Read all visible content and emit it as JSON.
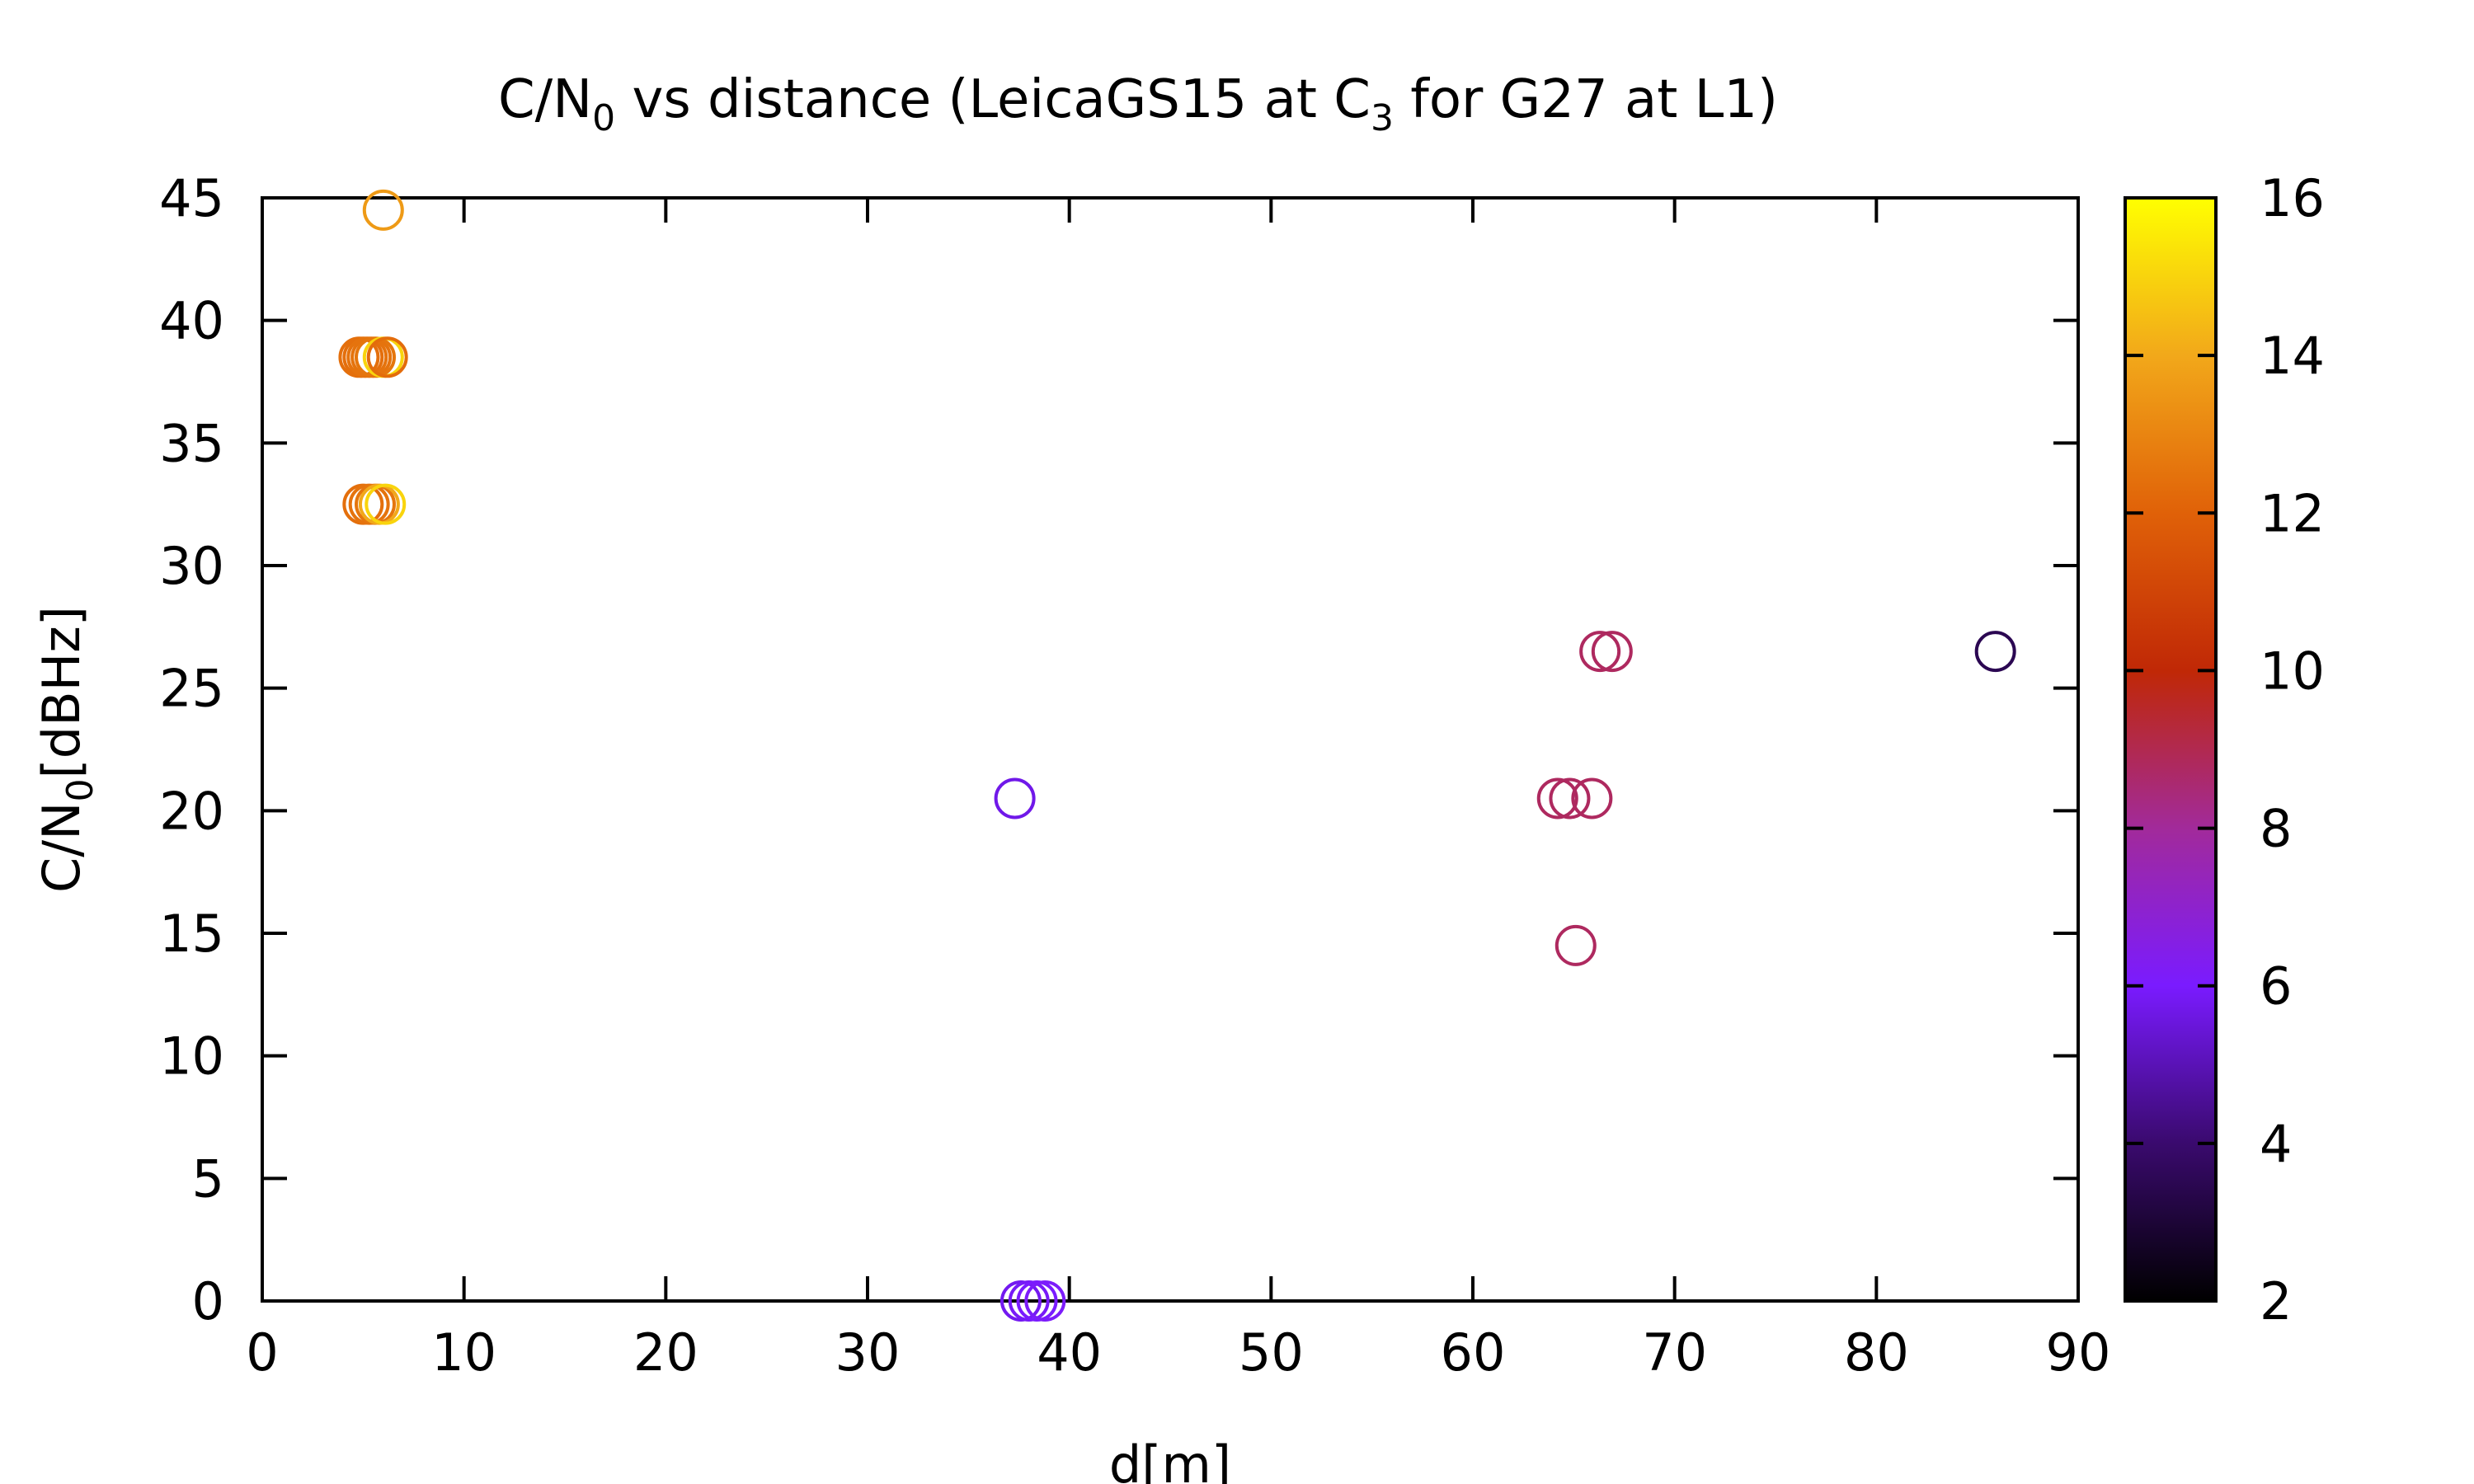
{
  "chart_data": {
    "type": "scatter",
    "title": {
      "base": "C/N",
      "sub": "0",
      "rest1": " vs distance (LeicaGS15 at C",
      "sub2": "3",
      "rest2": " for G27 at L1)"
    },
    "xlabel": "d[m]",
    "ylabel": {
      "base": "C/N",
      "sub": "0",
      "rest": "[dBHz]"
    },
    "xlim": [
      0,
      90
    ],
    "ylim": [
      0,
      45
    ],
    "xticks": [
      0,
      10,
      20,
      30,
      40,
      50,
      60,
      70,
      80,
      90
    ],
    "yticks": [
      0,
      5,
      10,
      15,
      20,
      25,
      30,
      35,
      40,
      45
    ],
    "colorbar": {
      "range": [
        2,
        16
      ],
      "ticks": [
        2,
        4,
        6,
        8,
        10,
        12,
        14,
        16
      ]
    },
    "marker": "open-circle",
    "points": [
      {
        "x": 6.0,
        "y": 44.5,
        "c": 13.6
      },
      {
        "x": 4.8,
        "y": 38.5,
        "c": 12.4
      },
      {
        "x": 5.0,
        "y": 38.5,
        "c": 12.4
      },
      {
        "x": 5.2,
        "y": 38.5,
        "c": 12.5
      },
      {
        "x": 5.4,
        "y": 38.5,
        "c": 12.5
      },
      {
        "x": 5.6,
        "y": 38.5,
        "c": 12.6
      },
      {
        "x": 6.0,
        "y": 38.5,
        "c": 15.0
      },
      {
        "x": 6.2,
        "y": 38.5,
        "c": 12.3
      },
      {
        "x": 5.0,
        "y": 32.5,
        "c": 12.4
      },
      {
        "x": 5.3,
        "y": 32.5,
        "c": 12.5
      },
      {
        "x": 5.6,
        "y": 32.5,
        "c": 12.6
      },
      {
        "x": 5.8,
        "y": 32.5,
        "c": 14.0
      },
      {
        "x": 6.1,
        "y": 32.5,
        "c": 15.0
      },
      {
        "x": 37.3,
        "y": 20.5,
        "c": 5.7
      },
      {
        "x": 37.6,
        "y": 0.0,
        "c": 5.8
      },
      {
        "x": 38.0,
        "y": 0.0,
        "c": 5.9
      },
      {
        "x": 38.4,
        "y": 0.0,
        "c": 6.0
      },
      {
        "x": 38.8,
        "y": 0.0,
        "c": 6.1
      },
      {
        "x": 64.2,
        "y": 20.5,
        "c": 8.8
      },
      {
        "x": 64.8,
        "y": 20.5,
        "c": 8.8
      },
      {
        "x": 65.9,
        "y": 20.5,
        "c": 8.8
      },
      {
        "x": 65.1,
        "y": 14.5,
        "c": 8.8
      },
      {
        "x": 66.3,
        "y": 26.5,
        "c": 8.8
      },
      {
        "x": 66.9,
        "y": 26.5,
        "c": 8.8
      },
      {
        "x": 85.9,
        "y": 26.5,
        "c": 3.5
      }
    ]
  }
}
